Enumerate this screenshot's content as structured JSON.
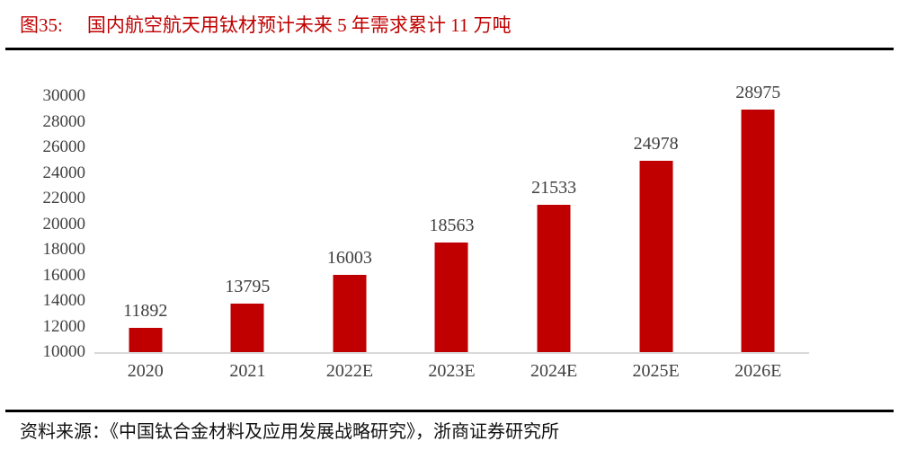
{
  "page": {
    "figure_label": "图35:",
    "title": "国内航空航天用钛材预计未来 5 年需求累计 11 万吨",
    "source_text": "资料来源：《中国钛合金材料及应用发展战略研究》，浙商证券研究所"
  },
  "colors": {
    "bar": "#C00000",
    "title_red": "#C00000",
    "axis_label": "#404040",
    "baseline": "#D9D9D9",
    "rule": "#000000"
  },
  "chart_data": {
    "type": "bar",
    "title": "国内航空航天用钛材预计未来 5 年需求累计 11 万吨",
    "categories": [
      "2020",
      "2021",
      "2022E",
      "2023E",
      "2024E",
      "2025E",
      "2026E"
    ],
    "values": [
      11892,
      13795,
      16003,
      18563,
      21533,
      24978,
      28975
    ],
    "xlabel": "",
    "ylabel": "",
    "ylim": [
      10000,
      30000
    ],
    "ytick_step": 2000,
    "yticks": [
      10000,
      12000,
      14000,
      16000,
      18000,
      20000,
      22000,
      24000,
      26000,
      28000,
      30000
    ],
    "grid": false,
    "legend": false,
    "data_labels": true,
    "bar_color": "#C00000"
  }
}
